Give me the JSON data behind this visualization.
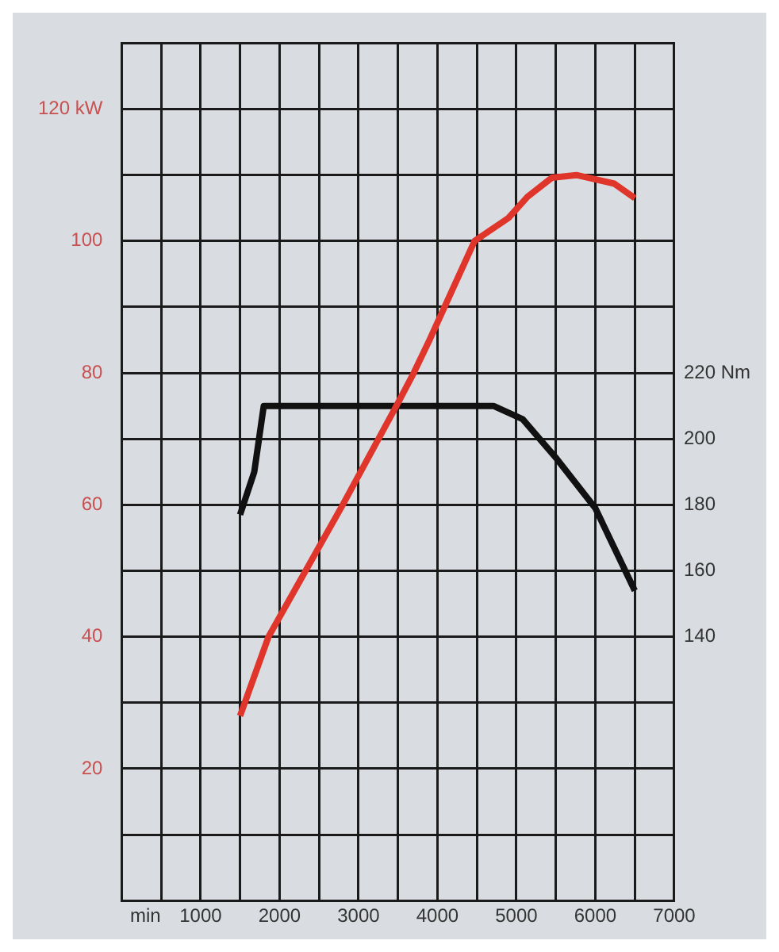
{
  "chart_data": {
    "type": "line",
    "xlabel": "min",
    "xlim": [
      0,
      7000
    ],
    "xticks": [
      {
        "value": 0,
        "label": null
      },
      {
        "value": 500,
        "label": null
      },
      1000,
      {
        "value": 1500,
        "label": null
      },
      2000,
      {
        "value": 2500,
        "label": null
      },
      3000,
      {
        "value": 3500,
        "label": null
      },
      4000,
      {
        "value": 4500,
        "label": null
      },
      5000,
      {
        "value": 5500,
        "label": null
      },
      6000,
      {
        "value": 6500,
        "label": null
      },
      7000
    ],
    "ylim": [
      0,
      130
    ],
    "yticks": [
      {
        "value": 0,
        "label": null
      },
      {
        "value": 10,
        "label": null
      },
      20,
      {
        "value": 30,
        "label": null
      },
      40,
      {
        "value": 50,
        "label": null
      },
      60,
      {
        "value": 70,
        "label": null
      },
      80,
      {
        "value": 90,
        "label": null
      },
      100,
      {
        "value": 110,
        "label": null
      },
      {
        "value": 120,
        "label": "120 kW"
      },
      {
        "value": 130,
        "label": null
      }
    ],
    "y2lim": [
      60,
      320
    ],
    "y2ticks": [
      140,
      160,
      180,
      200,
      {
        "value": 220,
        "label": "220 Nm"
      }
    ],
    "grid": true,
    "legend": false,
    "marker": "none",
    "line_style": "solid",
    "series": [
      {
        "color": "#e0352b",
        "x": [
          1500,
          1860,
          2800,
          3480,
          3700,
          3900,
          4470,
          4900,
          5140,
          5450,
          5760,
          6240,
          6500
        ],
        "values": [
          28,
          40,
          60,
          75,
          80,
          85,
          100,
          103.5,
          106.7,
          109.6,
          110,
          108.7,
          106.5
        ]
      },
      {
        "color": "#111111",
        "axis": "y2",
        "x": [
          1500,
          1680,
          1800,
          4710,
          5080,
          5510,
          6000,
          6500
        ],
        "values": [
          177,
          190,
          210,
          210,
          206,
          194,
          179,
          154
        ]
      }
    ]
  }
}
